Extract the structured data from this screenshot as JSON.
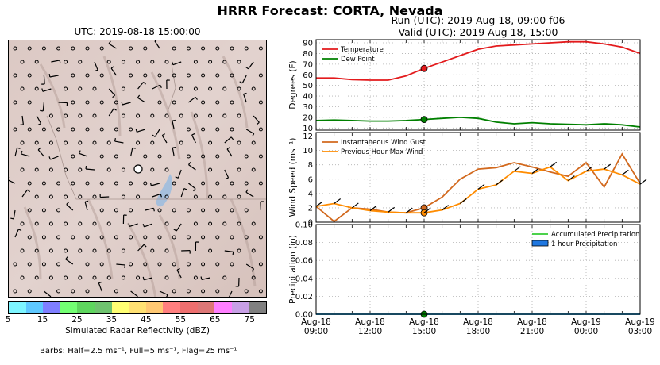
{
  "title": "HRRR Forecast: CORTA, Nevada",
  "map": {
    "title": "UTC: 2019-08-18 15:00:00",
    "colorbar": {
      "label": "Simulated Radar Reflectivity (dBZ)",
      "ticks": [
        "5",
        "15",
        "25",
        "35",
        "45",
        "55",
        "65",
        "75"
      ],
      "colors": [
        "#7df5ff",
        "#5ec8ff",
        "#7f7fff",
        "#73ff73",
        "#5ed65e",
        "#6fc36f",
        "#ffff73",
        "#ffe173",
        "#ffc873",
        "#ff7f7f",
        "#ee6f6f",
        "#dd7777",
        "#ff7fff",
        "#c8a0e6",
        "#808080"
      ]
    },
    "barb_note": "Barbs: Half=2.5 ms⁻¹, Full=5 ms⁻¹, Flag=25 ms⁻¹"
  },
  "run": {
    "line1": "Run (UTC): 2019 Aug 18, 09:00 f06",
    "line2": "Valid (UTC): 2019 Aug 18, 15:00"
  },
  "chart_data": [
    {
      "type": "line",
      "ylabel": "Degrees (F)",
      "ylim": [
        8,
        93
      ],
      "yticks": [
        10,
        20,
        30,
        40,
        50,
        60,
        70,
        80,
        90
      ],
      "grid": true,
      "legend": "top-left",
      "x_hours": [
        0,
        1,
        2,
        3,
        4,
        5,
        6,
        7,
        8,
        9,
        10,
        11,
        12,
        13,
        14,
        15,
        16,
        17,
        18
      ],
      "series": [
        {
          "name": "Temperature",
          "color": "#e31a1c",
          "values": [
            57,
            57,
            55.5,
            55,
            55,
            59,
            66,
            72,
            78,
            84,
            87,
            88,
            89,
            90,
            91,
            91,
            89,
            86,
            80
          ]
        },
        {
          "name": "Dew Point",
          "color": "#008000",
          "values": [
            17,
            17.5,
            17,
            16.5,
            16.5,
            17,
            18,
            19,
            20,
            19,
            15.5,
            14,
            15,
            14,
            13.5,
            13,
            14,
            13,
            11
          ]
        }
      ],
      "markers": [
        {
          "x": 6,
          "y": 66,
          "color": "#e31a1c"
        },
        {
          "x": 6,
          "y": 18,
          "color": "#008000"
        }
      ]
    },
    {
      "type": "line",
      "ylabel": "Wind Speed (ms⁻¹)",
      "ylim": [
        0,
        12.5
      ],
      "yticks": [
        0,
        2,
        4,
        6,
        8,
        10,
        12
      ],
      "grid": true,
      "legend": "top-left",
      "x_hours": [
        0,
        1,
        2,
        3,
        4,
        5,
        6,
        7,
        8,
        9,
        10,
        11,
        12,
        13,
        14,
        15,
        16,
        17,
        18
      ],
      "series": [
        {
          "name": "Instantaneous Wind Gust",
          "color": "#d2691e",
          "values": [
            2.2,
            0.1,
            2.0,
            1.8,
            1.4,
            1.3,
            2.0,
            3.5,
            6.0,
            7.4,
            7.6,
            8.3,
            7.7,
            7.0,
            6.4,
            8.3,
            4.9,
            9.5,
            5.4
          ]
        },
        {
          "name": "Previous Hour Max Wind",
          "color": "#ff8c00",
          "values": [
            2.2,
            2.6,
            2.0,
            1.6,
            1.4,
            1.3,
            1.3,
            1.7,
            2.6,
            4.6,
            5.2,
            7.1,
            6.8,
            7.7,
            5.8,
            7.1,
            7.4,
            6.6,
            5.3
          ]
        }
      ],
      "markers": [
        {
          "x": 6,
          "y": 2.0,
          "color": "#d2691e"
        },
        {
          "x": 6,
          "y": 1.3,
          "color": "#ff8c00"
        }
      ]
    },
    {
      "type": "line",
      "ylabel": "Precipitation (in)",
      "ylim": [
        0,
        0.1
      ],
      "yticks": [
        "0.00",
        "0.02",
        "0.04",
        "0.06",
        "0.08",
        "0.10"
      ],
      "grid": true,
      "legend": "top-right",
      "x_hours": [
        0,
        18
      ],
      "series": [
        {
          "name": "Accumulated Precipitation",
          "color": "#33cc33",
          "values": [
            0,
            0
          ]
        },
        {
          "name": "1 hour Precipitation",
          "color": "#1f77e0",
          "values": [
            0,
            0
          ]
        }
      ],
      "markers": [
        {
          "x": 6,
          "y": 0,
          "color": "#008000"
        }
      ],
      "xticks": [
        {
          "line1": "Aug-18",
          "line2": "09:00"
        },
        {
          "line1": "Aug-18",
          "line2": "12:00"
        },
        {
          "line1": "Aug-18",
          "line2": "15:00"
        },
        {
          "line1": "Aug-18",
          "line2": "18:00"
        },
        {
          "line1": "Aug-18",
          "line2": "21:00"
        },
        {
          "line1": "Aug-19",
          "line2": "00:00"
        },
        {
          "line1": "Aug-19",
          "line2": "03:00"
        }
      ]
    }
  ]
}
